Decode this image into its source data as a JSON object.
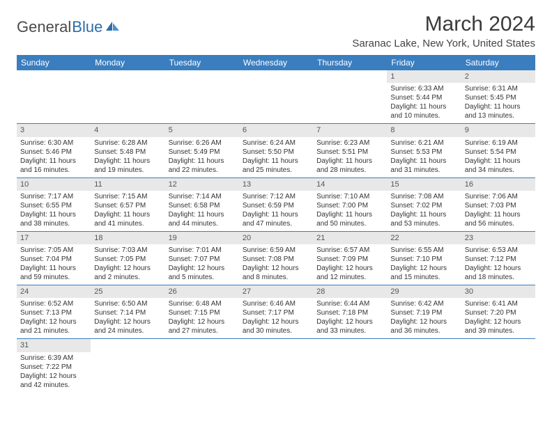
{
  "logo": {
    "text1": "General",
    "text2": "Blue"
  },
  "title": "March 2024",
  "location": "Saranac Lake, New York, United States",
  "colors": {
    "header_bg": "#3a7ebf",
    "daynum_bg": "#e8e8e8",
    "rule": "#3a7ebf"
  },
  "day_names": [
    "Sunday",
    "Monday",
    "Tuesday",
    "Wednesday",
    "Thursday",
    "Friday",
    "Saturday"
  ],
  "weeks": [
    [
      null,
      null,
      null,
      null,
      null,
      {
        "n": "1",
        "sr": "Sunrise: 6:33 AM",
        "ss": "Sunset: 5:44 PM",
        "dl": "Daylight: 11 hours and 10 minutes."
      },
      {
        "n": "2",
        "sr": "Sunrise: 6:31 AM",
        "ss": "Sunset: 5:45 PM",
        "dl": "Daylight: 11 hours and 13 minutes."
      }
    ],
    [
      {
        "n": "3",
        "sr": "Sunrise: 6:30 AM",
        "ss": "Sunset: 5:46 PM",
        "dl": "Daylight: 11 hours and 16 minutes."
      },
      {
        "n": "4",
        "sr": "Sunrise: 6:28 AM",
        "ss": "Sunset: 5:48 PM",
        "dl": "Daylight: 11 hours and 19 minutes."
      },
      {
        "n": "5",
        "sr": "Sunrise: 6:26 AM",
        "ss": "Sunset: 5:49 PM",
        "dl": "Daylight: 11 hours and 22 minutes."
      },
      {
        "n": "6",
        "sr": "Sunrise: 6:24 AM",
        "ss": "Sunset: 5:50 PM",
        "dl": "Daylight: 11 hours and 25 minutes."
      },
      {
        "n": "7",
        "sr": "Sunrise: 6:23 AM",
        "ss": "Sunset: 5:51 PM",
        "dl": "Daylight: 11 hours and 28 minutes."
      },
      {
        "n": "8",
        "sr": "Sunrise: 6:21 AM",
        "ss": "Sunset: 5:53 PM",
        "dl": "Daylight: 11 hours and 31 minutes."
      },
      {
        "n": "9",
        "sr": "Sunrise: 6:19 AM",
        "ss": "Sunset: 5:54 PM",
        "dl": "Daylight: 11 hours and 34 minutes."
      }
    ],
    [
      {
        "n": "10",
        "sr": "Sunrise: 7:17 AM",
        "ss": "Sunset: 6:55 PM",
        "dl": "Daylight: 11 hours and 38 minutes."
      },
      {
        "n": "11",
        "sr": "Sunrise: 7:15 AM",
        "ss": "Sunset: 6:57 PM",
        "dl": "Daylight: 11 hours and 41 minutes."
      },
      {
        "n": "12",
        "sr": "Sunrise: 7:14 AM",
        "ss": "Sunset: 6:58 PM",
        "dl": "Daylight: 11 hours and 44 minutes."
      },
      {
        "n": "13",
        "sr": "Sunrise: 7:12 AM",
        "ss": "Sunset: 6:59 PM",
        "dl": "Daylight: 11 hours and 47 minutes."
      },
      {
        "n": "14",
        "sr": "Sunrise: 7:10 AM",
        "ss": "Sunset: 7:00 PM",
        "dl": "Daylight: 11 hours and 50 minutes."
      },
      {
        "n": "15",
        "sr": "Sunrise: 7:08 AM",
        "ss": "Sunset: 7:02 PM",
        "dl": "Daylight: 11 hours and 53 minutes."
      },
      {
        "n": "16",
        "sr": "Sunrise: 7:06 AM",
        "ss": "Sunset: 7:03 PM",
        "dl": "Daylight: 11 hours and 56 minutes."
      }
    ],
    [
      {
        "n": "17",
        "sr": "Sunrise: 7:05 AM",
        "ss": "Sunset: 7:04 PM",
        "dl": "Daylight: 11 hours and 59 minutes."
      },
      {
        "n": "18",
        "sr": "Sunrise: 7:03 AM",
        "ss": "Sunset: 7:05 PM",
        "dl": "Daylight: 12 hours and 2 minutes."
      },
      {
        "n": "19",
        "sr": "Sunrise: 7:01 AM",
        "ss": "Sunset: 7:07 PM",
        "dl": "Daylight: 12 hours and 5 minutes."
      },
      {
        "n": "20",
        "sr": "Sunrise: 6:59 AM",
        "ss": "Sunset: 7:08 PM",
        "dl": "Daylight: 12 hours and 8 minutes."
      },
      {
        "n": "21",
        "sr": "Sunrise: 6:57 AM",
        "ss": "Sunset: 7:09 PM",
        "dl": "Daylight: 12 hours and 12 minutes."
      },
      {
        "n": "22",
        "sr": "Sunrise: 6:55 AM",
        "ss": "Sunset: 7:10 PM",
        "dl": "Daylight: 12 hours and 15 minutes."
      },
      {
        "n": "23",
        "sr": "Sunrise: 6:53 AM",
        "ss": "Sunset: 7:12 PM",
        "dl": "Daylight: 12 hours and 18 minutes."
      }
    ],
    [
      {
        "n": "24",
        "sr": "Sunrise: 6:52 AM",
        "ss": "Sunset: 7:13 PM",
        "dl": "Daylight: 12 hours and 21 minutes."
      },
      {
        "n": "25",
        "sr": "Sunrise: 6:50 AM",
        "ss": "Sunset: 7:14 PM",
        "dl": "Daylight: 12 hours and 24 minutes."
      },
      {
        "n": "26",
        "sr": "Sunrise: 6:48 AM",
        "ss": "Sunset: 7:15 PM",
        "dl": "Daylight: 12 hours and 27 minutes."
      },
      {
        "n": "27",
        "sr": "Sunrise: 6:46 AM",
        "ss": "Sunset: 7:17 PM",
        "dl": "Daylight: 12 hours and 30 minutes."
      },
      {
        "n": "28",
        "sr": "Sunrise: 6:44 AM",
        "ss": "Sunset: 7:18 PM",
        "dl": "Daylight: 12 hours and 33 minutes."
      },
      {
        "n": "29",
        "sr": "Sunrise: 6:42 AM",
        "ss": "Sunset: 7:19 PM",
        "dl": "Daylight: 12 hours and 36 minutes."
      },
      {
        "n": "30",
        "sr": "Sunrise: 6:41 AM",
        "ss": "Sunset: 7:20 PM",
        "dl": "Daylight: 12 hours and 39 minutes."
      }
    ],
    [
      {
        "n": "31",
        "sr": "Sunrise: 6:39 AM",
        "ss": "Sunset: 7:22 PM",
        "dl": "Daylight: 12 hours and 42 minutes."
      },
      null,
      null,
      null,
      null,
      null,
      null
    ]
  ]
}
